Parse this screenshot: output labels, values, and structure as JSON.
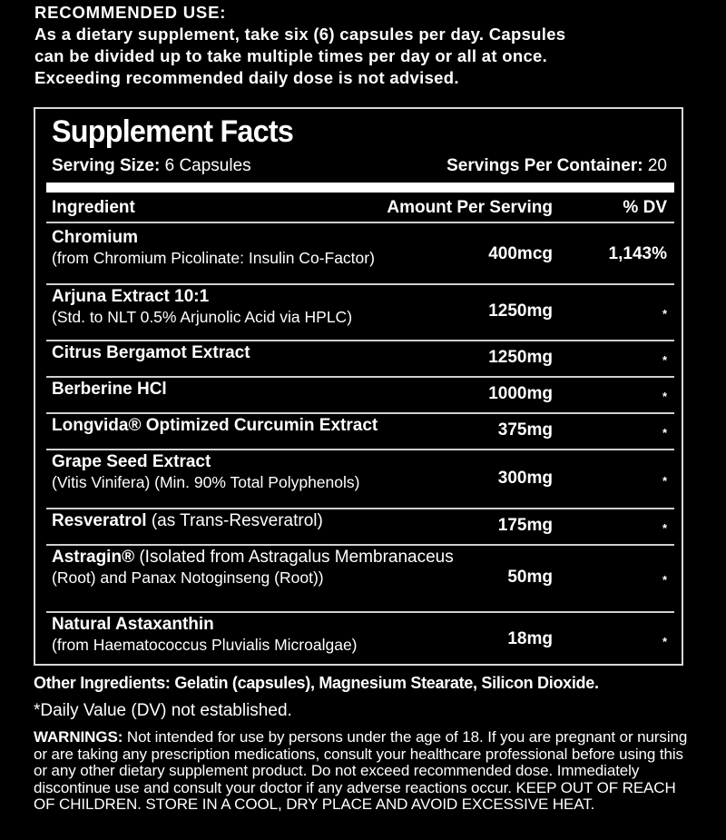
{
  "recommended_use": {
    "heading": "RECOMMENDED USE:",
    "lines": [
      "As a dietary supplement, take six (6) capsules per day. Capsules",
      "can be divided up to take multiple times per day or all at once.",
      "Exceeding recommended daily dose is not advised."
    ]
  },
  "facts": {
    "title": "Supplement Facts",
    "serving_size_label": "Serving Size:",
    "serving_size_value": "6 Capsules",
    "servings_per_container_label": "Servings Per Container:",
    "servings_per_container_value": "20",
    "columns": {
      "ingredient": "Ingredient",
      "amount": "Amount Per Serving",
      "dv": "% DV"
    },
    "rows": [
      {
        "name": "Chromium",
        "suffix": "",
        "sub": "(from Chromium Picolinate: Insulin Co-Factor)",
        "amount": "400mcg",
        "dv": "1,143%"
      },
      {
        "name": "Arjuna Extract 10:1",
        "suffix": "",
        "sub": "(Std. to NLT 0.5% Arjunolic Acid via HPLC)",
        "amount": "1250mg",
        "dv": "*"
      },
      {
        "name": "Citrus Bergamot Extract",
        "suffix": "",
        "sub": "",
        "amount": "1250mg",
        "dv": "*"
      },
      {
        "name": "Berberine HCl",
        "suffix": "",
        "sub": "",
        "amount": "1000mg",
        "dv": "*"
      },
      {
        "name": "Longvida® Optimized Curcumin Extract",
        "suffix": "",
        "sub": "",
        "amount": "375mg",
        "dv": "*"
      },
      {
        "name": "Grape Seed Extract",
        "suffix": "",
        "sub": "(Vitis Vinifera) (Min. 90% Total Polyphenols)",
        "amount": "300mg",
        "dv": "*"
      },
      {
        "name": "Resveratrol",
        "suffix": " (as Trans-Resveratrol)",
        "sub": "",
        "amount": "175mg",
        "dv": "*"
      },
      {
        "name": "Astragin®",
        "suffix": " (Isolated from Astragalus Membranaceus",
        "sub": "(Root) and Panax Notoginseng (Root))",
        "amount": "50mg",
        "dv": "*"
      },
      {
        "name": "Natural Astaxanthin",
        "suffix": "",
        "sub": "(from Haematococcus Pluvialis Microalgae)",
        "amount": "18mg",
        "dv": "*"
      }
    ]
  },
  "other_ingredients": "Other Ingredients: Gelatin (capsules), Magnesium Stearate, Silicon Dioxide.",
  "dv_note": "*Daily Value (DV) not established.",
  "warnings": {
    "label": "WARNINGS:",
    "text": " Not intended for use by persons under the age of 18. If you are pregnant or nursing or are taking any prescription medications, consult your healthcare professional before using this or any other dietary supplement product. Do not exceed recommended dose. Immediately discontinue use and consult your doctor if any adverse reactions occur. KEEP OUT OF REACH OF CHILDREN. STORE IN A COOL, DRY PLACE AND AVOID EXCESSIVE HEAT."
  }
}
